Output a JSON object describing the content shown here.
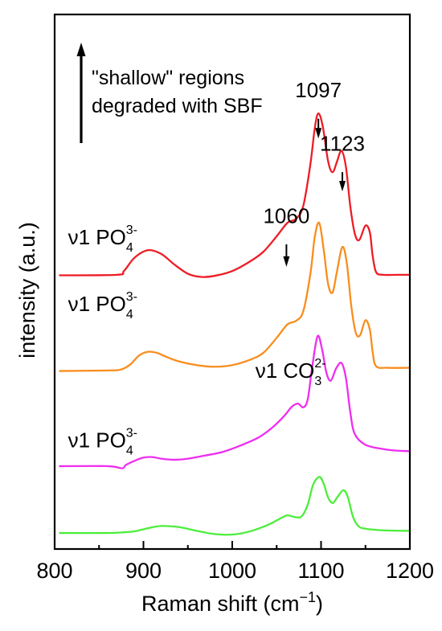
{
  "chart_data": {
    "type": "line",
    "xlabel_main": "Raman shift (cm",
    "xlabel_sup": "−1",
    "xlabel_end": ")",
    "ylabel": "intensity (a.u.)",
    "xlim": [
      800,
      1200
    ],
    "xticks": [
      800,
      900,
      1000,
      1100,
      1200
    ],
    "ylim": [
      0,
      100
    ],
    "yticks_shown": false,
    "grid": false,
    "note_line1": "\"shallow\" regions",
    "note_line2": "degraded with SBF",
    "peak_labels": [
      {
        "text": "1097",
        "x": 1097,
        "y": 84.5
      },
      {
        "text": "1123",
        "x": 1124,
        "y": 74.5
      },
      {
        "text": "1060",
        "x": 1061,
        "y": 61.0
      }
    ],
    "band_labels": [
      {
        "base": "ν1 PO",
        "sub": "4",
        "sup": "3-",
        "x": 815,
        "y": 57.0
      },
      {
        "base": "ν1 PO",
        "sub": "4",
        "sup": "3-",
        "x": 815,
        "y": 44.5
      },
      {
        "base": "ν1 CO",
        "sub": "3",
        "sup": "2-",
        "x": 1026,
        "y": 32.0
      },
      {
        "base": "ν1 PO",
        "sub": "4",
        "sup": "3-",
        "x": 815,
        "y": 19.0
      }
    ],
    "series": [
      {
        "color": "#ee1c25",
        "x": [
          805,
          870,
          878,
          890,
          905,
          920,
          935,
          950,
          965,
          980,
          1000,
          1020,
          1035,
          1050,
          1062,
          1072,
          1080,
          1088,
          1093,
          1097,
          1102,
          1108,
          1113,
          1118,
          1123,
          1128,
          1133,
          1138,
          1143,
          1150,
          1155,
          1158,
          1162,
          1170,
          1185,
          1200
        ],
        "y": [
          51.2,
          51.3,
          52.0,
          54.5,
          55.9,
          55.2,
          53.2,
          51.5,
          50.9,
          51.1,
          52.0,
          53.8,
          55.6,
          58.5,
          61.0,
          61.8,
          64.2,
          72.0,
          78.8,
          81.5,
          79.0,
          72.5,
          70.5,
          72.5,
          74.5,
          71.5,
          64.0,
          59.0,
          57.8,
          60.5,
          59.2,
          55.0,
          51.8,
          51.3,
          51.3,
          51.3
        ]
      },
      {
        "color": "#f98d1d",
        "x": [
          805,
          860,
          875,
          885,
          895,
          905,
          915,
          925,
          940,
          960,
          980,
          1000,
          1020,
          1035,
          1050,
          1062,
          1072,
          1080,
          1088,
          1093,
          1098,
          1103,
          1108,
          1113,
          1118,
          1124,
          1129,
          1134,
          1139,
          1144,
          1150,
          1155,
          1158,
          1162,
          1175,
          1200
        ],
        "y": [
          33.3,
          33.4,
          33.6,
          34.5,
          36.2,
          36.9,
          36.7,
          36.0,
          35.1,
          34.4,
          34.1,
          34.4,
          35.4,
          36.7,
          39.5,
          42.0,
          42.7,
          44.5,
          51.5,
          58.5,
          61.0,
          56.0,
          49.5,
          48.0,
          52.0,
          56.5,
          53.5,
          45.5,
          40.5,
          40.0,
          42.8,
          41.0,
          37.0,
          34.2,
          33.9,
          33.9
        ]
      },
      {
        "color": "#ef2df0",
        "x": [
          805,
          860,
          876,
          880,
          890,
          900,
          910,
          920,
          935,
          950,
          970,
          990,
          1010,
          1030,
          1045,
          1058,
          1067,
          1074,
          1080,
          1085,
          1090,
          1096,
          1101,
          1106,
          1111,
          1117,
          1123,
          1128,
          1133,
          1138,
          1150,
          1170,
          1185,
          1200
        ],
        "y": [
          15.5,
          15.5,
          15.1,
          15.7,
          16.5,
          17.1,
          17.2,
          16.9,
          16.7,
          16.9,
          17.5,
          18.2,
          19.4,
          20.9,
          22.7,
          24.8,
          26.6,
          27.2,
          26.5,
          28.0,
          34.0,
          39.8,
          37.5,
          33.0,
          31.5,
          33.8,
          34.8,
          32.0,
          25.5,
          21.5,
          19.5,
          18.7,
          18.4,
          18.3
        ]
      },
      {
        "color": "#4cee3b",
        "x": [
          805,
          860,
          875,
          890,
          905,
          920,
          940,
          960,
          980,
          1000,
          1020,
          1040,
          1055,
          1062,
          1070,
          1078,
          1085,
          1091,
          1098,
          1103,
          1108,
          1113,
          1118,
          1125,
          1130,
          1136,
          1142,
          1150,
          1170,
          1200
        ],
        "y": [
          3.0,
          3.0,
          3.1,
          3.3,
          3.9,
          4.3,
          4.1,
          3.4,
          2.8,
          2.7,
          3.3,
          4.5,
          5.8,
          6.3,
          6.0,
          6.1,
          8.3,
          12.0,
          13.5,
          12.2,
          9.6,
          8.6,
          9.6,
          11.0,
          9.8,
          6.0,
          4.3,
          3.8,
          3.5,
          3.4
        ]
      }
    ]
  }
}
